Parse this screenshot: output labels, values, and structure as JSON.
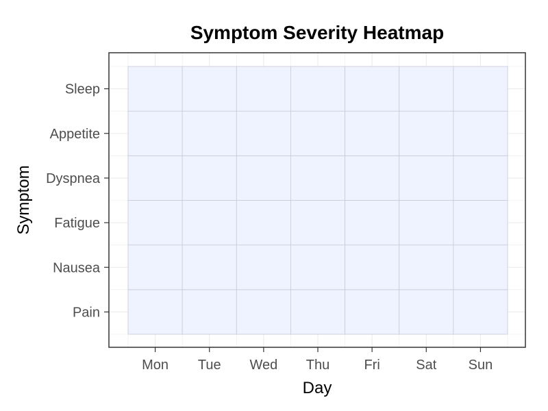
{
  "chart_data": {
    "type": "heatmap",
    "title": "Symptom Severity Heatmap",
    "xlabel": "Day",
    "ylabel": "Symptom",
    "x": [
      "Mon",
      "Tue",
      "Wed",
      "Thu",
      "Fri",
      "Sat",
      "Sun"
    ],
    "y": [
      "Pain",
      "Nausea",
      "Fatigue",
      "Dyspnea",
      "Appetite",
      "Sleep"
    ],
    "cell_color": "#eef3ff",
    "cell_border_color": "#c9c9d6",
    "grid": true,
    "legend": "none"
  }
}
